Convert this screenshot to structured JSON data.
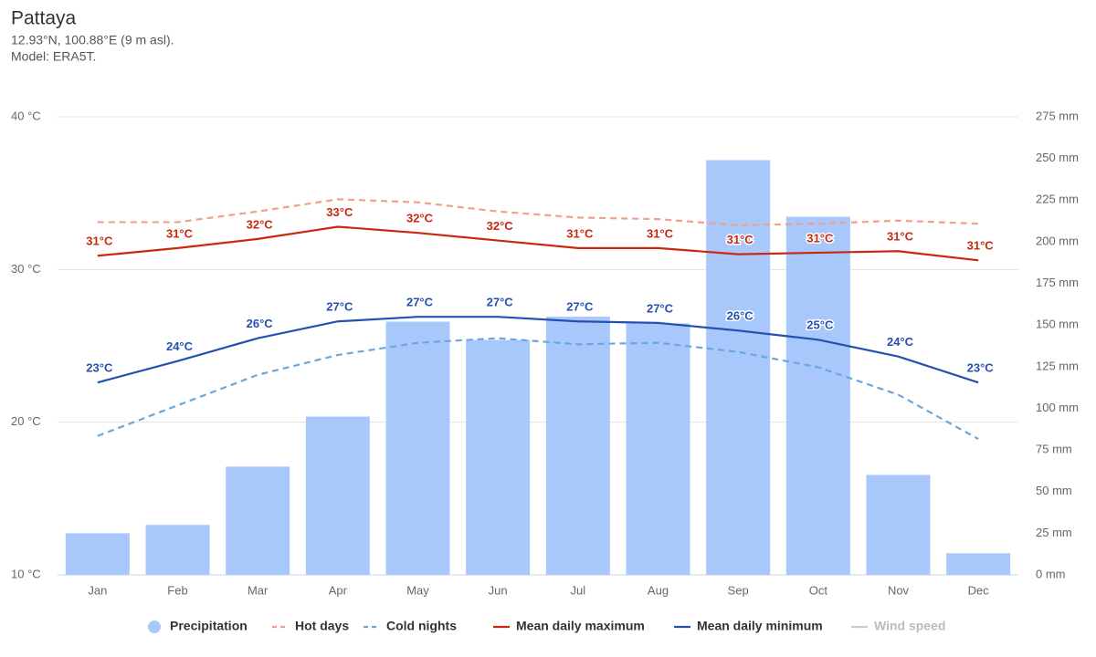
{
  "chart_data": {
    "type": "combo",
    "title": "Pattaya",
    "subtitle": [
      "12.93°N, 100.88°E (9 m asl).",
      "Model: ERA5T."
    ],
    "categories": [
      "Jan",
      "Feb",
      "Mar",
      "Apr",
      "May",
      "Jun",
      "Jul",
      "Aug",
      "Sep",
      "Oct",
      "Nov",
      "Dec"
    ],
    "ylim": [
      10,
      40
    ],
    "yticks": [
      {
        "value": 10,
        "label": "10 °C"
      },
      {
        "value": 20,
        "label": "20 °C"
      },
      {
        "value": 30,
        "label": "30 °C"
      },
      {
        "value": 40,
        "label": "40 °C"
      }
    ],
    "y2lim": [
      0,
      275
    ],
    "y2ticks": [
      {
        "value": 0,
        "label": "0 mm"
      },
      {
        "value": 25,
        "label": "25 mm"
      },
      {
        "value": 50,
        "label": "50 mm"
      },
      {
        "value": 75,
        "label": "75 mm"
      },
      {
        "value": 100,
        "label": "100 mm"
      },
      {
        "value": 125,
        "label": "125 mm"
      },
      {
        "value": 150,
        "label": "150 mm"
      },
      {
        "value": 175,
        "label": "175 mm"
      },
      {
        "value": 200,
        "label": "200 mm"
      },
      {
        "value": 225,
        "label": "225 mm"
      },
      {
        "value": 250,
        "label": "250 mm"
      },
      {
        "value": 275,
        "label": "275 mm"
      }
    ],
    "grid": true,
    "legend": "bottom",
    "series": [
      {
        "name": "Precipitation",
        "type": "bar",
        "axis": "y2",
        "color": "#a8c8fb",
        "values": [
          25,
          30,
          65,
          95,
          152,
          141,
          155,
          151,
          249,
          215,
          60,
          13
        ]
      },
      {
        "name": "Hot days",
        "type": "line",
        "dash": true,
        "color": "#f0a08c",
        "values": [
          33.1,
          33.1,
          33.8,
          34.6,
          34.4,
          33.8,
          33.4,
          33.3,
          32.9,
          33.0,
          33.2,
          33.0
        ]
      },
      {
        "name": "Cold nights",
        "type": "line",
        "dash": true,
        "color": "#6aa7dc",
        "values": [
          19.1,
          21.1,
          23.1,
          24.4,
          25.2,
          25.5,
          25.1,
          25.2,
          24.6,
          23.6,
          21.8,
          18.9
        ]
      },
      {
        "name": "Mean daily maximum",
        "type": "line",
        "color": "#c8290f",
        "values": [
          30.9,
          31.4,
          32.0,
          32.8,
          32.4,
          31.9,
          31.4,
          31.4,
          31.0,
          31.1,
          31.2,
          30.6
        ],
        "value_labels": [
          "31°C",
          "31°C",
          "32°C",
          "33°C",
          "32°C",
          "32°C",
          "31°C",
          "31°C",
          "31°C",
          "31°C",
          "31°C",
          "31°C"
        ]
      },
      {
        "name": "Mean daily minimum",
        "type": "line",
        "color": "#2550b0",
        "values": [
          22.6,
          24.0,
          25.5,
          26.6,
          26.9,
          26.9,
          26.6,
          26.5,
          26.0,
          25.4,
          24.3,
          22.6
        ],
        "value_labels": [
          "23°C",
          "24°C",
          "26°C",
          "27°C",
          "27°C",
          "27°C",
          "27°C",
          "27°C",
          "26°C",
          "25°C",
          "24°C",
          "23°C"
        ]
      },
      {
        "name": "Wind speed",
        "type": "line",
        "visible": false,
        "color": "#aaaaaa",
        "values": [
          null,
          null,
          null,
          null,
          null,
          null,
          null,
          null,
          null,
          null,
          null,
          null
        ]
      }
    ]
  }
}
